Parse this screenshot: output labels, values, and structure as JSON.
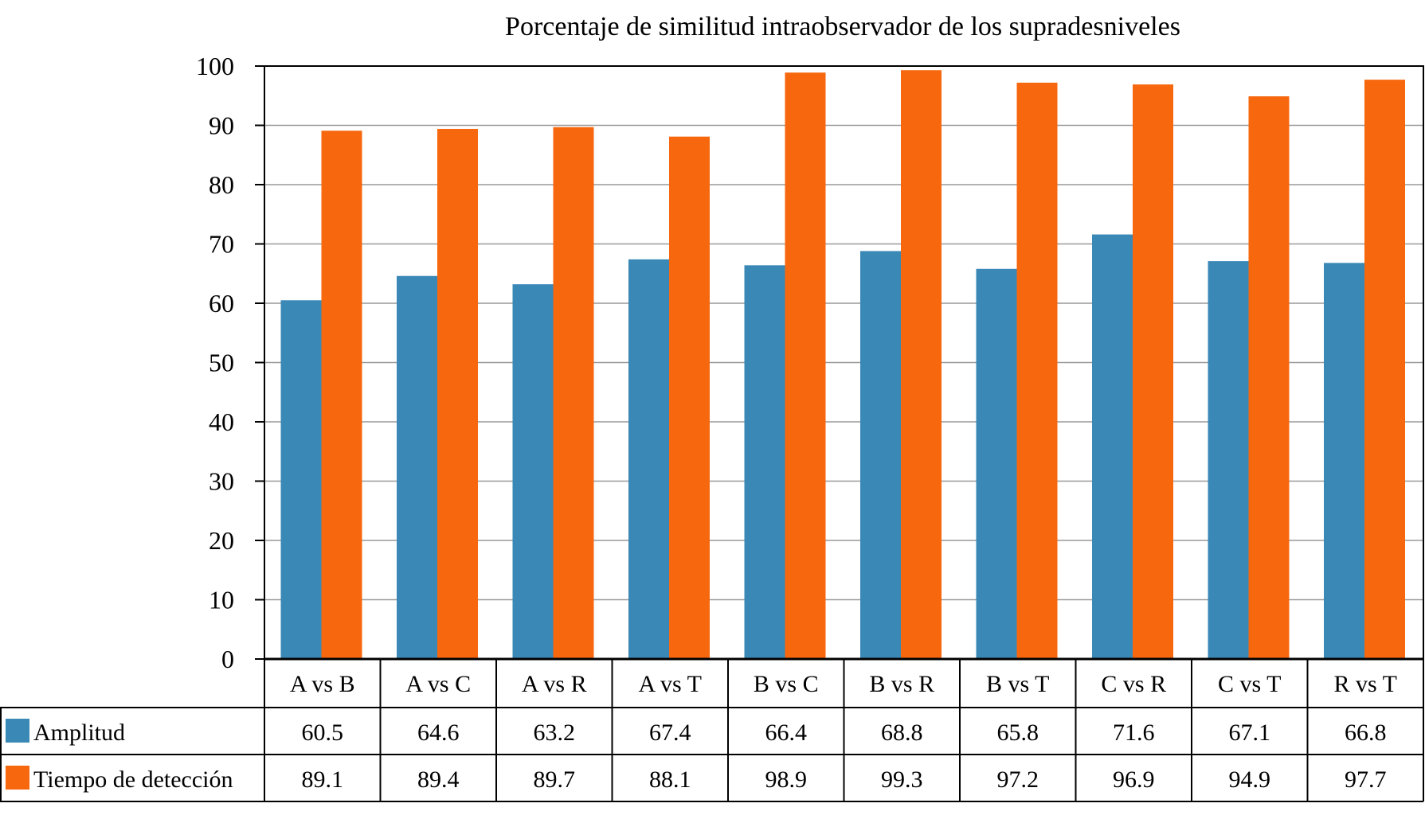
{
  "chart_data": {
    "type": "bar",
    "title": "Porcentaje de similitud intraobservador de los supradesniveles",
    "xlabel": "",
    "ylabel": "",
    "ylim": [
      0,
      100
    ],
    "yticks": [
      "0",
      "10",
      "20",
      "30",
      "40",
      "50",
      "60",
      "70",
      "80",
      "90",
      "100"
    ],
    "grid": true,
    "legend_placement": "data-table-left",
    "categories": [
      "A vs B",
      "A vs C",
      "A vs R",
      "A vs T",
      "B vs C",
      "B  vs R",
      "B vs T",
      "C vs R",
      "C vs T",
      "R vs T"
    ],
    "series": [
      {
        "name": "Amplitud",
        "color": "#3a88b6",
        "values": [
          60.5,
          64.6,
          63.2,
          67.4,
          66.4,
          68.8,
          65.8,
          71.6,
          67.1,
          66.8
        ],
        "labels": [
          "60.5",
          "64.6",
          "63.2",
          "67.4",
          "66.4",
          "68.8",
          "65.8",
          "71.6",
          "67.1",
          "66.8"
        ]
      },
      {
        "name": "Tiempo de detección",
        "color": "#f7670e",
        "values": [
          89.1,
          89.4,
          89.7,
          88.1,
          98.9,
          99.3,
          97.2,
          96.9,
          94.9,
          97.7
        ],
        "labels": [
          "89.1",
          "89.4",
          "89.7",
          "88.1",
          "98.9",
          "99.3",
          "97.2",
          "96.9",
          "94.9",
          "97.7"
        ]
      }
    ]
  }
}
